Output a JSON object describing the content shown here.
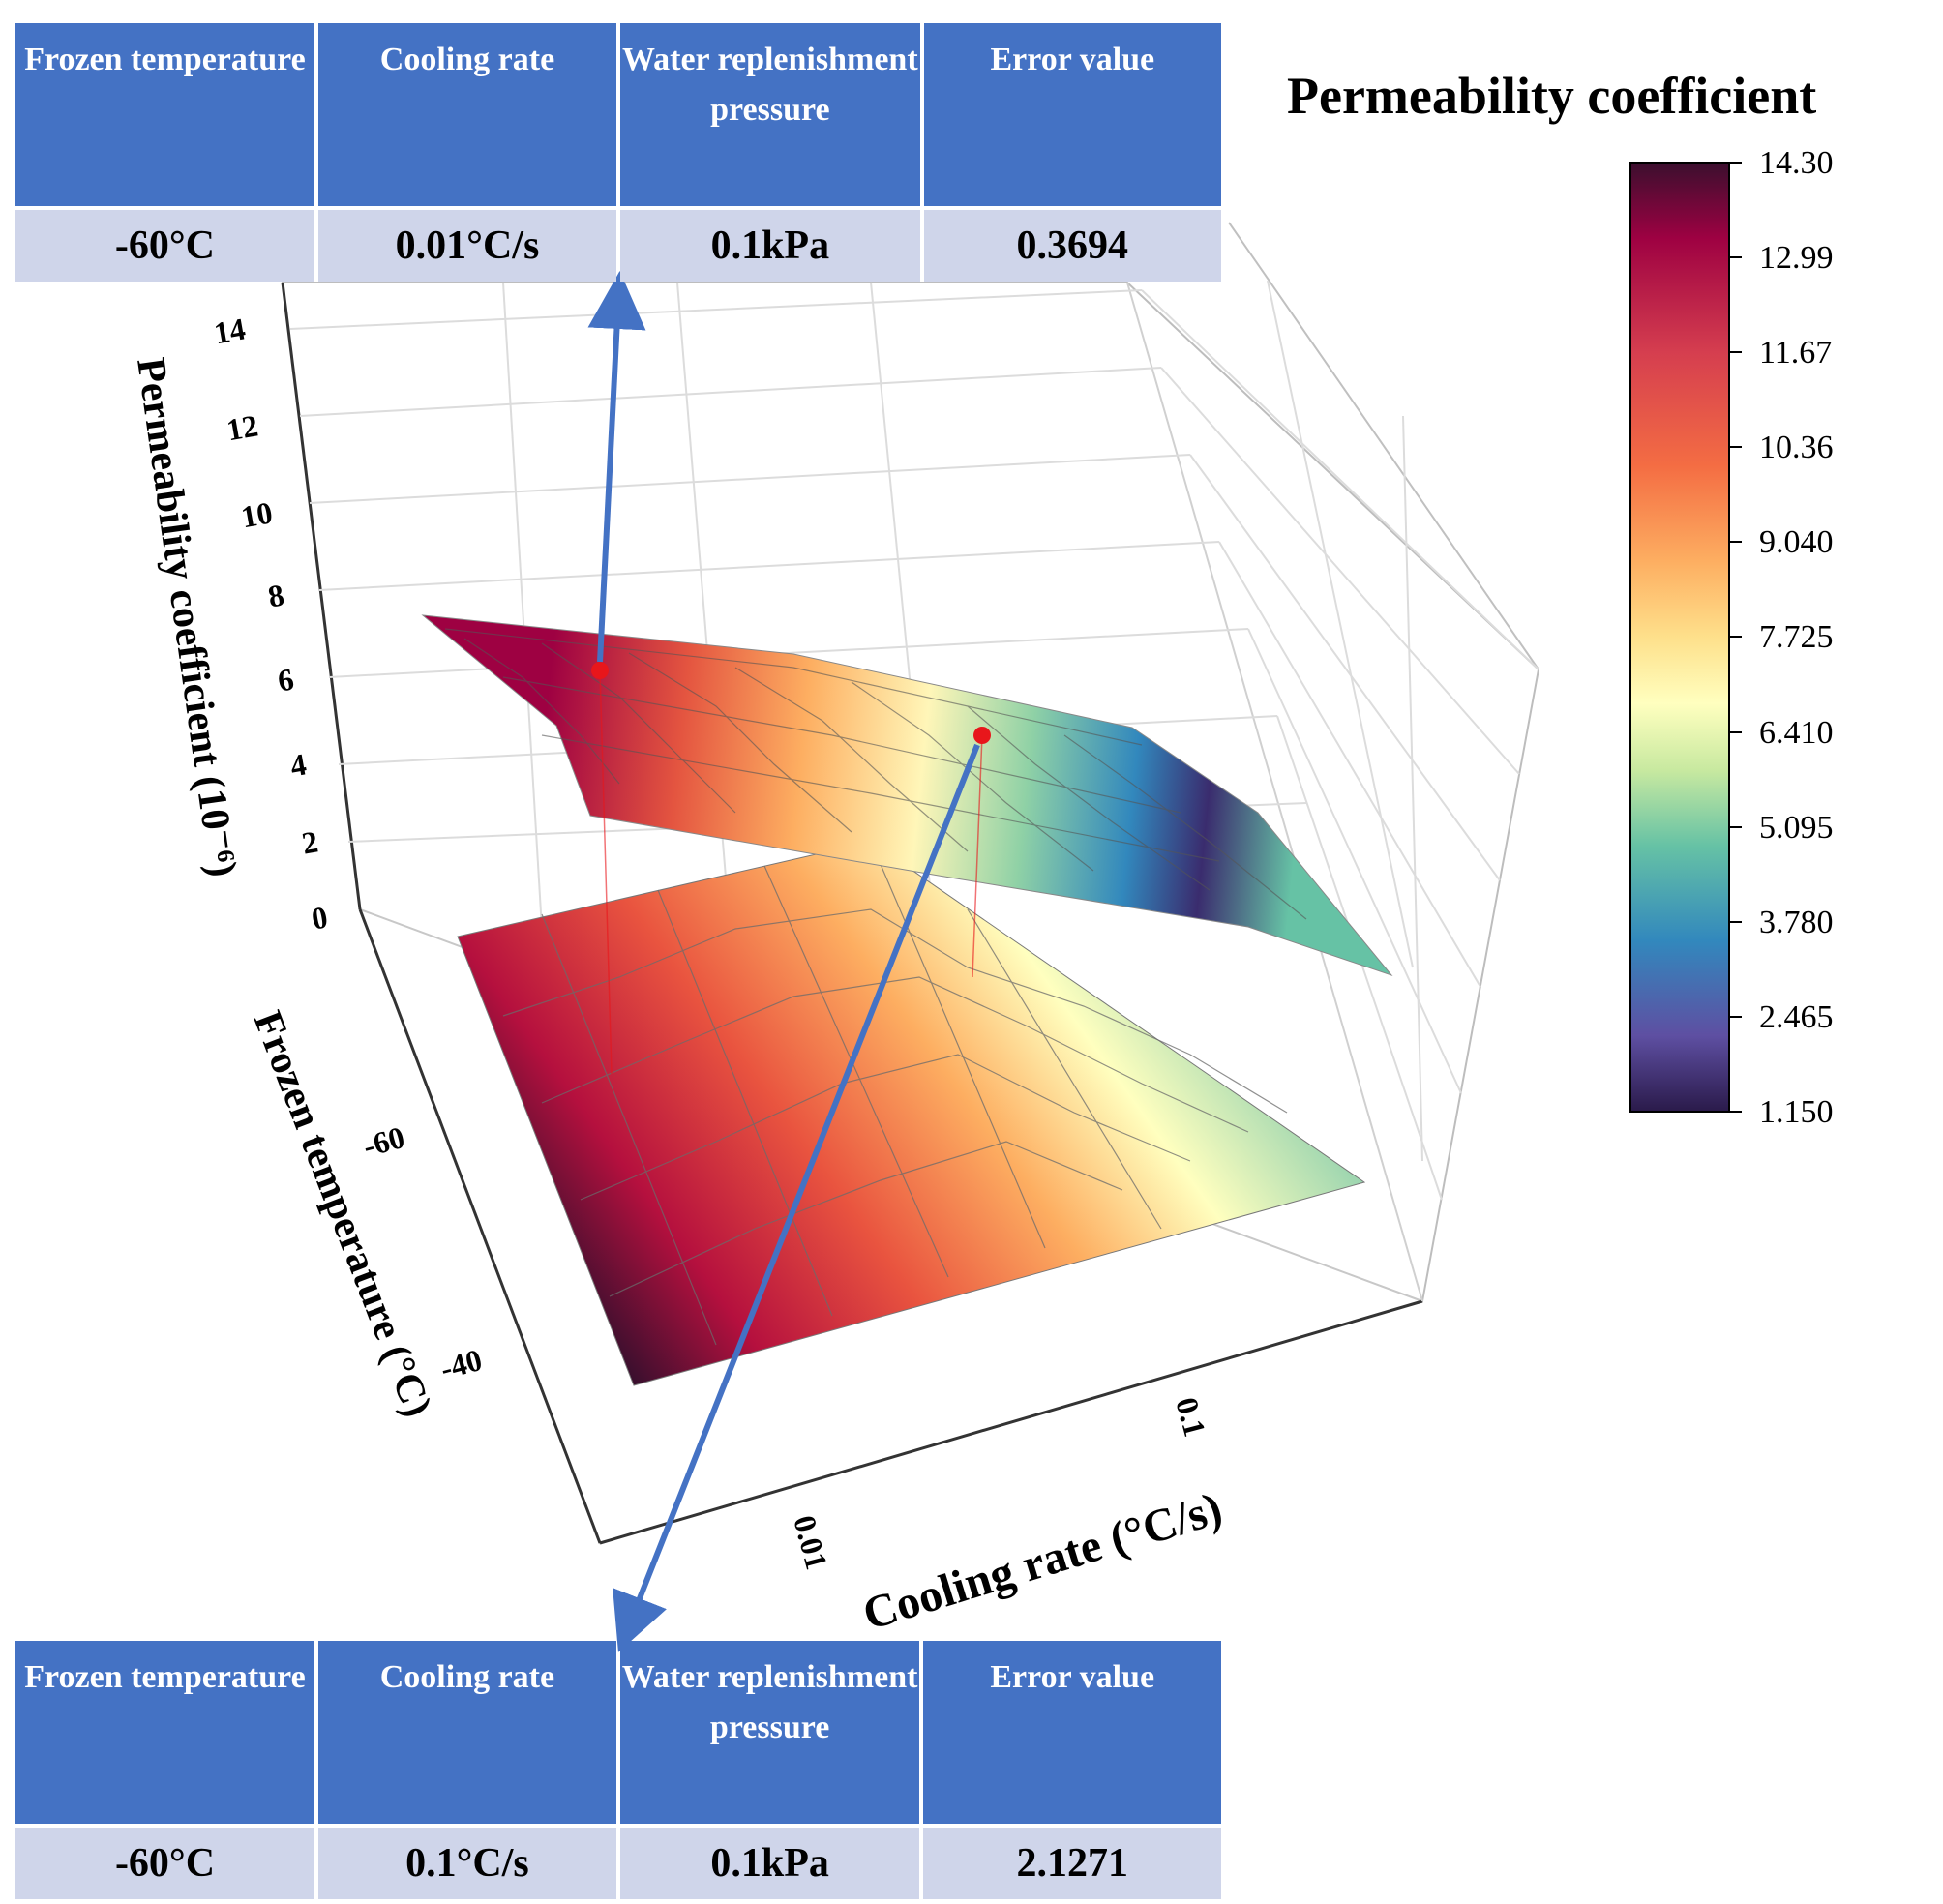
{
  "chart_data": {
    "type": "3d-surface",
    "title": "Permeability coefficient",
    "zlabel": "Permeability coefficient (10⁻⁶)",
    "xlabel": "Cooling rate (°C/s)",
    "ylabel": "Frozen temperature (°C)",
    "z_ticks": [
      "14",
      "12",
      "10",
      "8",
      "6",
      "4",
      "2",
      "0"
    ],
    "x_ticks": [
      "0.01",
      "0.1"
    ],
    "y_ticks": [
      "-60",
      "-40"
    ],
    "zlim": [
      0,
      14
    ],
    "colorbar": {
      "min": 1.15,
      "max": 14.3,
      "ticks": [
        "14.30",
        "12.99",
        "11.67",
        "10.36",
        "9.040",
        "7.725",
        "6.410",
        "5.095",
        "3.780",
        "2.465",
        "1.150"
      ],
      "colors": [
        "#3b0f2e",
        "#9e0142",
        "#d53e4f",
        "#f46d43",
        "#fdae61",
        "#fee08b",
        "#ffffbf",
        "#e6f598",
        "#abdda4",
        "#66c2a5",
        "#3288bd",
        "#5e4fa2",
        "#2a1a4a"
      ]
    },
    "marked_points": [
      {
        "frozen_temperature": -60,
        "cooling_rate": 0.01,
        "pressure_kpa": 0.1,
        "error": 0.3694
      },
      {
        "frozen_temperature": -60,
        "cooling_rate": 0.1,
        "pressure_kpa": 0.1,
        "error": 2.1271
      }
    ]
  },
  "tables": {
    "top": {
      "headers": [
        "Frozen temperature",
        "Cooling rate",
        "Water replenishment pressure",
        "Error value"
      ],
      "values": [
        "-60°C",
        "0.01°C/s",
        "0.1kPa",
        "0.3694"
      ]
    },
    "bottom": {
      "headers": [
        "Frozen temperature",
        "Cooling rate",
        "Water replenishment pressure",
        "Error value"
      ],
      "values": [
        "-60°C",
        "0.1°C/s",
        "0.1kPa",
        "2.1271"
      ]
    }
  },
  "colors": {
    "table_header": "#4472c4",
    "table_value": "#cfd5ea",
    "arrow": "#4472c4",
    "marker": "#e8161b"
  }
}
